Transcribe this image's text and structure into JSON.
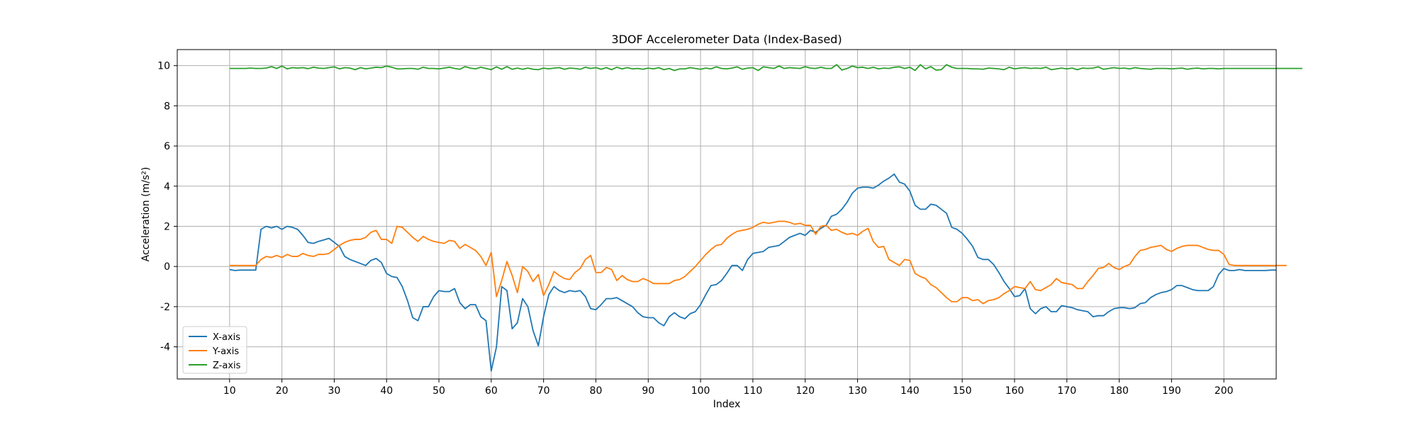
{
  "chart_data": {
    "type": "line",
    "title": "3DOF Accelerometer Data (Index-Based)",
    "xlabel": "Index",
    "ylabel": "Acceleration (m/s²)",
    "xlim": [
      0,
      210
    ],
    "ylim": [
      -5.6,
      10.8
    ],
    "xticks": [
      10,
      20,
      30,
      40,
      50,
      60,
      70,
      80,
      90,
      100,
      110,
      120,
      130,
      140,
      150,
      160,
      170,
      180,
      190,
      200
    ],
    "yticks": [
      -4,
      -2,
      0,
      2,
      4,
      6,
      8,
      10
    ],
    "grid": true,
    "legend_position": "lower-left",
    "x_start": 10,
    "series": [
      {
        "name": "X-axis",
        "color": "#1f77b4",
        "values": [
          -0.15,
          -0.2,
          -0.18,
          -0.18,
          -0.18,
          -0.18,
          1.85,
          2.0,
          1.92,
          2.0,
          1.85,
          2.0,
          1.95,
          1.85,
          1.55,
          1.2,
          1.15,
          1.25,
          1.32,
          1.4,
          1.2,
          1.0,
          0.5,
          0.35,
          0.25,
          0.15,
          0.05,
          0.3,
          0.4,
          0.2,
          -0.35,
          -0.5,
          -0.55,
          -1.0,
          -1.7,
          -2.55,
          -2.7,
          -2.0,
          -2.0,
          -1.5,
          -1.2,
          -1.25,
          -1.25,
          -1.1,
          -1.8,
          -2.1,
          -1.9,
          -1.9,
          -2.5,
          -2.7,
          -5.2,
          -4.0,
          -1.0,
          -1.2,
          -3.1,
          -2.8,
          -1.6,
          -2.0,
          -3.2,
          -3.95,
          -2.5,
          -1.4,
          -1.0,
          -1.2,
          -1.3,
          -1.2,
          -1.25,
          -1.2,
          -1.5,
          -2.1,
          -2.15,
          -1.9,
          -1.6,
          -1.6,
          -1.55,
          -1.7,
          -1.85,
          -2.0,
          -2.3,
          -2.5,
          -2.55,
          -2.55,
          -2.8,
          -2.95,
          -2.5,
          -2.3,
          -2.5,
          -2.6,
          -2.35,
          -2.25,
          -1.9,
          -1.4,
          -0.95,
          -0.9,
          -0.7,
          -0.35,
          0.05,
          0.05,
          -0.2,
          0.35,
          0.65,
          0.7,
          0.75,
          0.95,
          1.0,
          1.05,
          1.25,
          1.45,
          1.55,
          1.65,
          1.55,
          1.8,
          1.7,
          1.9,
          2.05,
          2.5,
          2.6,
          2.85,
          3.2,
          3.65,
          3.9,
          3.95,
          3.95,
          3.9,
          4.05,
          4.25,
          4.4,
          4.6,
          4.2,
          4.1,
          3.75,
          3.05,
          2.85,
          2.85,
          3.1,
          3.05,
          2.85,
          2.65,
          1.95,
          1.85,
          1.65,
          1.35,
          1.0,
          0.45,
          0.35,
          0.35,
          0.1,
          -0.3,
          -0.75,
          -1.1,
          -1.5,
          -1.45,
          -1.1,
          -2.1,
          -2.35,
          -2.1,
          -2.0,
          -2.25,
          -2.25,
          -1.95,
          -2.0,
          -2.05,
          -2.15,
          -2.2,
          -2.25,
          -2.5,
          -2.45,
          -2.45,
          -2.25,
          -2.1,
          -2.05,
          -2.05,
          -2.1,
          -2.05,
          -1.85,
          -1.8,
          -1.55,
          -1.4,
          -1.3,
          -1.25,
          -1.15,
          -0.95,
          -0.95,
          -1.05,
          -1.15,
          -1.2,
          -1.2,
          -1.2,
          -1.0,
          -0.4,
          -0.1,
          -0.2,
          -0.2,
          -0.15,
          -0.2,
          -0.2,
          -0.2,
          -0.2,
          -0.2,
          -0.18,
          -0.18
        ]
      },
      {
        "name": "Y-axis",
        "color": "#ff7f0e",
        "values": [
          0.05,
          0.05,
          0.05,
          0.05,
          0.05,
          0.05,
          0.35,
          0.5,
          0.45,
          0.55,
          0.45,
          0.6,
          0.5,
          0.5,
          0.65,
          0.55,
          0.5,
          0.6,
          0.6,
          0.65,
          0.85,
          1.05,
          1.2,
          1.3,
          1.35,
          1.35,
          1.45,
          1.7,
          1.8,
          1.35,
          1.35,
          1.15,
          2.0,
          1.95,
          1.7,
          1.45,
          1.25,
          1.5,
          1.35,
          1.25,
          1.2,
          1.15,
          1.3,
          1.25,
          0.9,
          1.1,
          0.95,
          0.8,
          0.5,
          0.05,
          0.7,
          -1.5,
          -0.7,
          0.25,
          -0.45,
          -1.3,
          0.0,
          -0.25,
          -0.75,
          -0.4,
          -1.45,
          -0.9,
          -0.25,
          -0.45,
          -0.6,
          -0.65,
          -0.3,
          -0.1,
          0.35,
          0.55,
          -0.3,
          -0.3,
          -0.05,
          -0.15,
          -0.7,
          -0.45,
          -0.65,
          -0.75,
          -0.75,
          -0.6,
          -0.7,
          -0.85,
          -0.85,
          -0.85,
          -0.85,
          -0.7,
          -0.65,
          -0.5,
          -0.25,
          0.0,
          0.3,
          0.6,
          0.85,
          1.05,
          1.1,
          1.4,
          1.6,
          1.75,
          1.8,
          1.85,
          1.95,
          2.1,
          2.2,
          2.15,
          2.2,
          2.25,
          2.25,
          2.2,
          2.1,
          2.15,
          2.05,
          2.05,
          1.6,
          2.0,
          2.05,
          1.8,
          1.85,
          1.7,
          1.6,
          1.65,
          1.55,
          1.75,
          1.9,
          1.25,
          0.95,
          1.0,
          0.35,
          0.2,
          0.05,
          0.35,
          0.3,
          -0.35,
          -0.5,
          -0.6,
          -0.9,
          -1.05,
          -1.3,
          -1.55,
          -1.75,
          -1.75,
          -1.55,
          -1.55,
          -1.7,
          -1.65,
          -1.85,
          -1.7,
          -1.65,
          -1.55,
          -1.35,
          -1.2,
          -1.0,
          -1.05,
          -1.1,
          -0.75,
          -1.15,
          -1.2,
          -1.05,
          -0.9,
          -0.6,
          -0.8,
          -0.85,
          -0.9,
          -1.1,
          -1.1,
          -0.75,
          -0.45,
          -0.1,
          -0.05,
          0.15,
          -0.05,
          -0.15,
          0.0,
          0.1,
          0.5,
          0.8,
          0.85,
          0.95,
          1.0,
          1.05,
          0.85,
          0.75,
          0.9,
          1.0,
          1.05,
          1.05,
          1.05,
          0.95,
          0.85,
          0.8,
          0.8,
          0.6,
          0.1,
          0.05,
          0.05,
          0.05,
          0.05,
          0.05,
          0.05,
          0.05,
          0.05,
          0.05,
          0.05,
          0.05
        ]
      },
      {
        "name": "Z-axis",
        "color": "#2ca02c",
        "values": [
          9.86,
          9.86,
          9.86,
          9.86,
          9.88,
          9.86,
          9.86,
          9.88,
          9.95,
          9.86,
          9.98,
          9.84,
          9.9,
          9.88,
          9.9,
          9.85,
          9.92,
          9.88,
          9.86,
          9.9,
          9.94,
          9.84,
          9.9,
          9.88,
          9.8,
          9.9,
          9.84,
          9.88,
          9.92,
          9.9,
          9.98,
          9.92,
          9.84,
          9.84,
          9.86,
          9.86,
          9.82,
          9.92,
          9.86,
          9.86,
          9.84,
          9.88,
          9.92,
          9.86,
          9.82,
          9.95,
          9.88,
          9.84,
          9.92,
          9.86,
          9.8,
          9.94,
          9.82,
          9.95,
          9.82,
          9.88,
          9.82,
          9.88,
          9.82,
          9.8,
          9.88,
          9.84,
          9.88,
          9.9,
          9.82,
          9.88,
          9.86,
          9.82,
          9.92,
          9.86,
          9.9,
          9.82,
          9.9,
          9.8,
          9.92,
          9.84,
          9.9,
          9.84,
          9.86,
          9.82,
          9.88,
          9.84,
          9.9,
          9.8,
          9.86,
          9.76,
          9.84,
          9.84,
          9.9,
          9.86,
          9.82,
          9.88,
          9.84,
          9.94,
          9.86,
          9.84,
          9.88,
          9.94,
          9.82,
          9.88,
          9.9,
          9.76,
          9.94,
          9.9,
          9.86,
          9.98,
          9.86,
          9.9,
          9.88,
          9.86,
          9.95,
          9.88,
          9.86,
          9.92,
          9.86,
          9.86,
          10.05,
          9.78,
          9.86,
          9.98,
          9.9,
          9.92,
          9.86,
          9.92,
          9.84,
          9.88,
          9.86,
          9.92,
          9.94,
          9.86,
          9.92,
          9.76,
          10.05,
          9.84,
          9.95,
          9.78,
          9.8,
          10.05,
          9.92,
          9.86,
          9.86,
          9.86,
          9.84,
          9.84,
          9.82,
          9.88,
          9.86,
          9.84,
          9.8,
          9.92,
          9.84,
          9.88,
          9.9,
          9.86,
          9.88,
          9.86,
          9.92,
          9.8,
          9.84,
          9.88,
          9.84,
          9.88,
          9.8,
          9.88,
          9.86,
          9.88,
          9.94,
          9.82,
          9.86,
          9.9,
          9.86,
          9.88,
          9.84,
          9.9,
          9.86,
          9.84,
          9.82,
          9.86,
          9.86,
          9.86,
          9.84,
          9.86,
          9.88,
          9.82,
          9.86,
          9.88,
          9.84,
          9.86,
          9.86,
          9.84,
          9.86,
          9.86,
          9.86,
          9.86,
          9.86,
          9.86,
          9.86,
          9.86,
          9.86,
          9.86,
          9.86,
          9.86,
          9.86,
          9.86,
          9.86,
          9.86
        ]
      }
    ]
  }
}
